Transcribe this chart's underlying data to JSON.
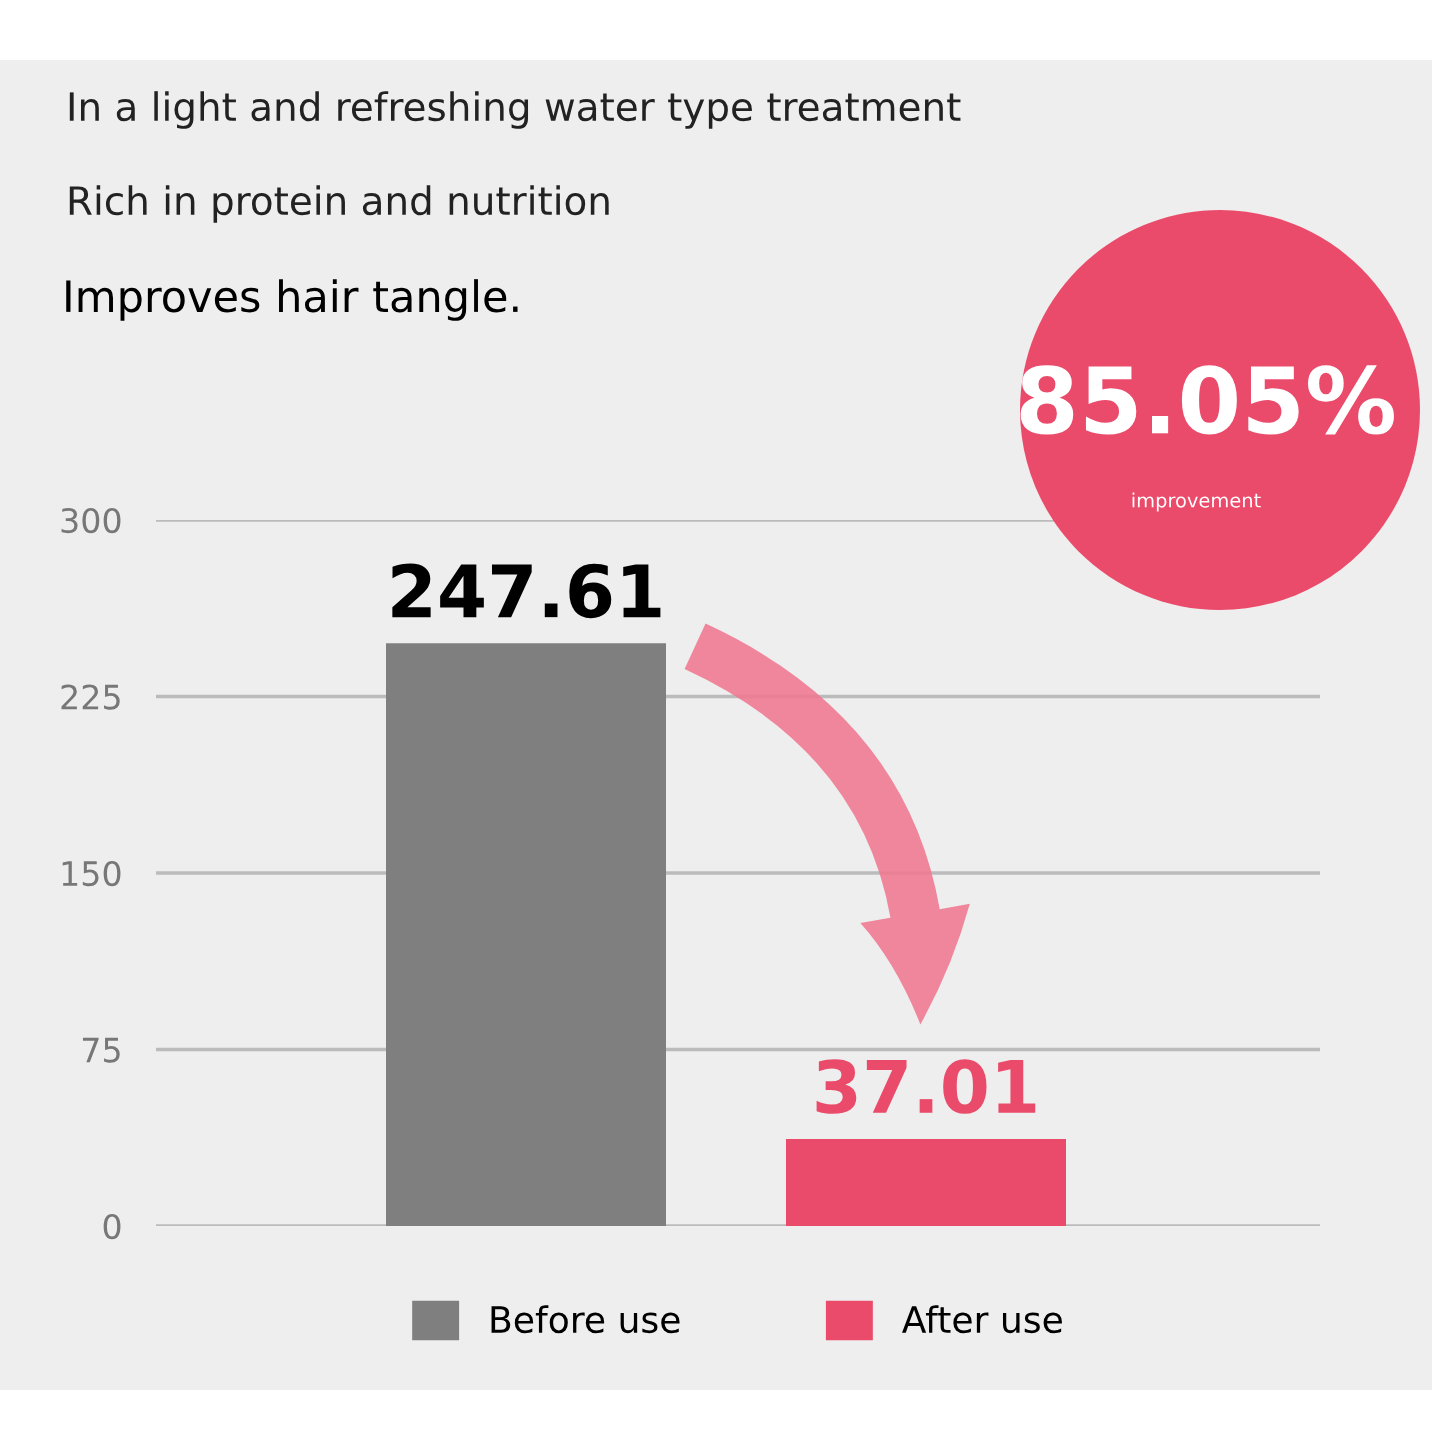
{
  "chart_data": {
    "type": "bar",
    "title": "In a light and refreshing water type treatment",
    "subtitle": "Rich in protein and nutrition",
    "annotations": [
      "Improves hair tangle.",
      "85.05%",
      "improvement"
    ],
    "categories": [
      null,
      null
    ],
    "series": [
      {
        "name": "Before use",
        "color": "#7f7f7f",
        "values": [
          247.61,
          null
        ]
      },
      {
        "name": "After use",
        "color": "#eb4b6b",
        "values": [
          null,
          37.01
        ]
      }
    ],
    "ylim": [
      0,
      300
    ],
    "yticks": [
      0,
      75,
      150,
      225,
      300
    ],
    "grid": "y",
    "legend": "bottom",
    "data_labels": true
  }
}
